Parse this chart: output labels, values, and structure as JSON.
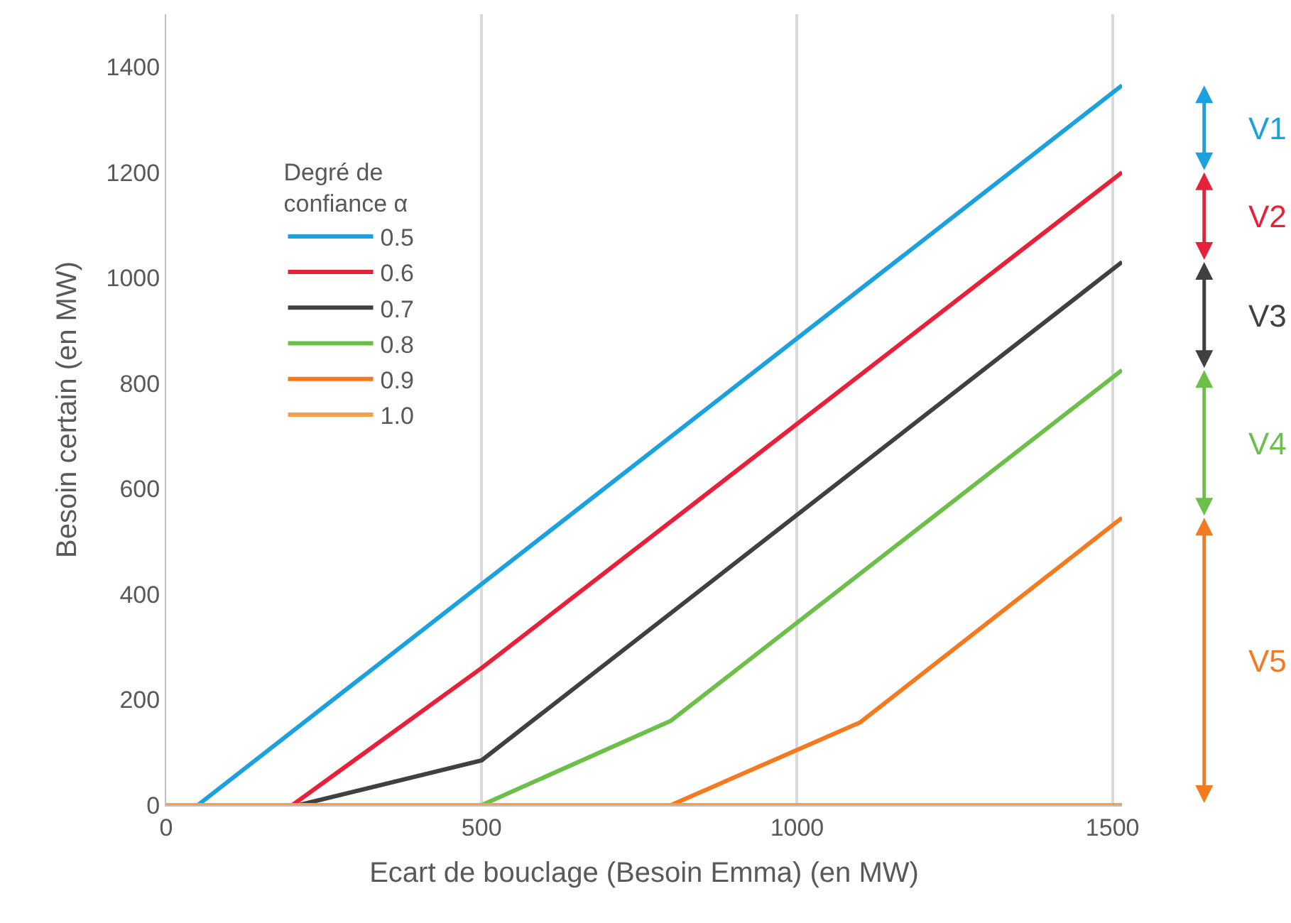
{
  "chart_data": {
    "type": "line",
    "xlabel": "Ecart de bouclage (Besoin Emma) (en MW)",
    "ylabel": "Besoin certain (en MW)",
    "legend_title": "Degré de\nconfiance α",
    "series": [
      {
        "name": "0.5",
        "color": "#1ba1dd",
        "x": [
          0,
          50,
          1515
        ],
        "values": [
          0,
          0,
          1365
        ]
      },
      {
        "name": "0.6",
        "color": "#e8213a",
        "x": [
          0,
          200,
          500,
          1515
        ],
        "values": [
          0,
          0,
          260,
          1200
        ]
      },
      {
        "name": "0.7",
        "color": "#404040",
        "x": [
          0,
          210,
          500,
          1515
        ],
        "values": [
          0,
          0,
          85,
          1030
        ]
      },
      {
        "name": "0.8",
        "color": "#6cc04a",
        "x": [
          0,
          500,
          800,
          1515
        ],
        "values": [
          0,
          0,
          160,
          825
        ]
      },
      {
        "name": "0.9",
        "color": "#f47a20",
        "x": [
          0,
          800,
          1100,
          1515
        ],
        "values": [
          0,
          0,
          157,
          545
        ]
      },
      {
        "name": "1.0",
        "color": "#f5a050",
        "x": [
          0,
          1515
        ],
        "values": [
          0,
          0
        ]
      }
    ],
    "annotations": [
      "V1",
      "V2",
      "V3",
      "V4",
      "V5"
    ],
    "xlim": [
      0,
      1515
    ],
    "xticks": [
      0,
      500,
      1000,
      1500
    ],
    "ylim": [
      0,
      1500
    ],
    "yticks": [
      0,
      200,
      400,
      600,
      800,
      1000,
      1200,
      1400
    ],
    "grid": "x",
    "legend": "top left",
    "marker": "none",
    "line_style": "solid"
  }
}
